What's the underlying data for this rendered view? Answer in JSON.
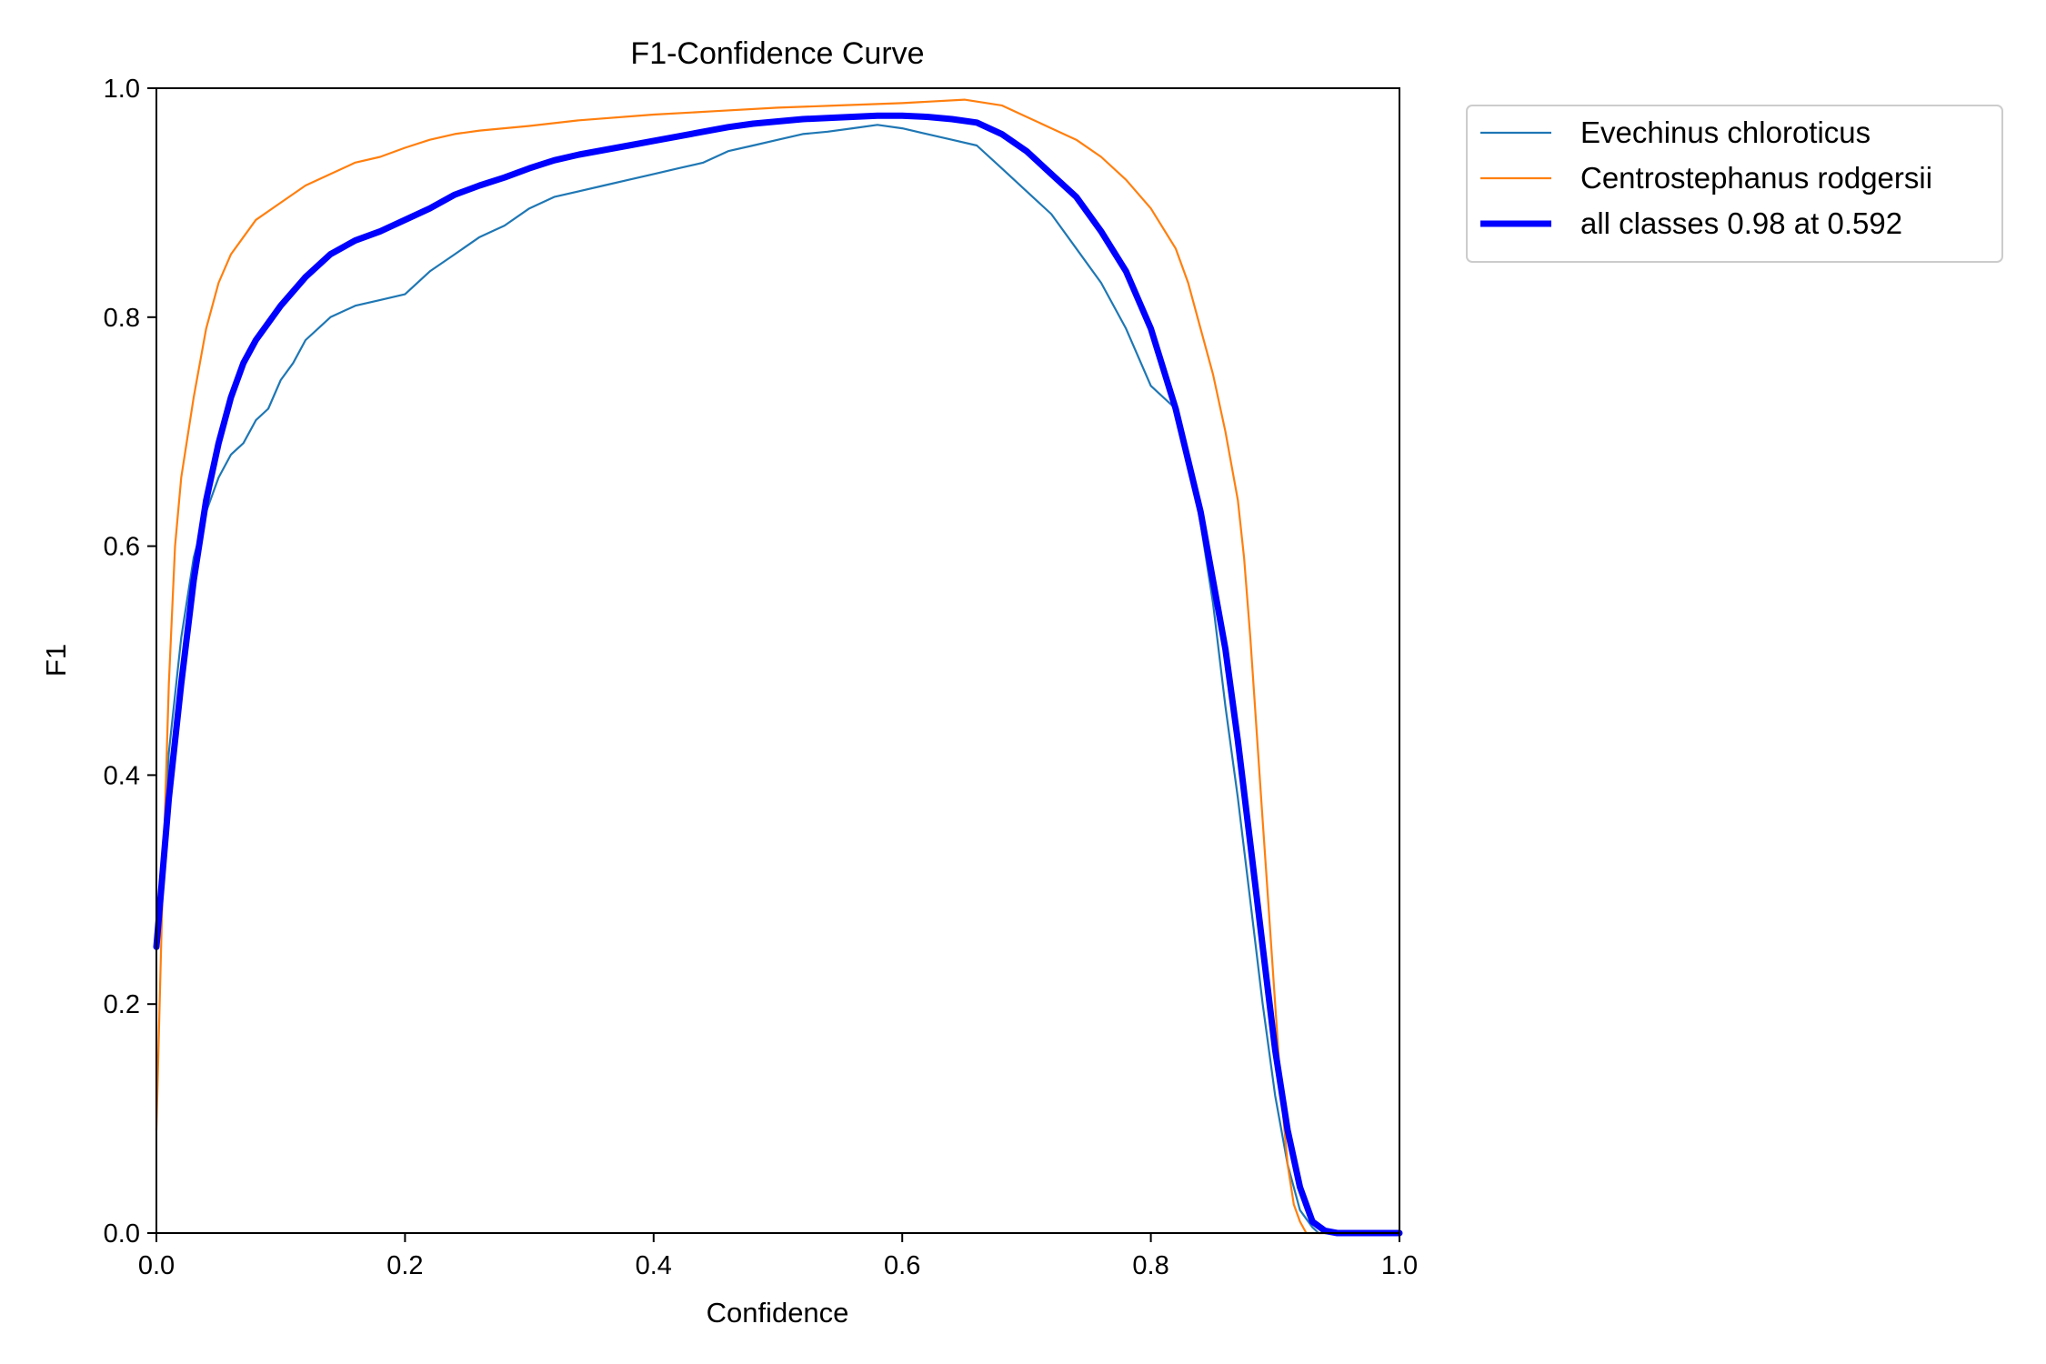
{
  "chart_data": {
    "type": "line",
    "title": "F1-Confidence Curve",
    "xlabel": "Confidence",
    "ylabel": "F1",
    "xlim": [
      0,
      1
    ],
    "ylim": [
      0,
      1
    ],
    "xticks": [
      "0.0",
      "0.2",
      "0.4",
      "0.6",
      "0.8",
      "1.0"
    ],
    "yticks": [
      "0.0",
      "0.2",
      "0.4",
      "0.6",
      "0.8",
      "1.0"
    ],
    "grid": false,
    "legend_position": "outside-top-right",
    "series": [
      {
        "name": "Evechinus chloroticus",
        "color": "#1f77b4",
        "width": "thin",
        "x": [
          0.0,
          0.005,
          0.01,
          0.02,
          0.03,
          0.04,
          0.05,
          0.06,
          0.07,
          0.08,
          0.09,
          0.1,
          0.11,
          0.12,
          0.13,
          0.14,
          0.16,
          0.18,
          0.2,
          0.22,
          0.24,
          0.26,
          0.28,
          0.3,
          0.32,
          0.34,
          0.36,
          0.38,
          0.4,
          0.42,
          0.44,
          0.46,
          0.48,
          0.5,
          0.52,
          0.54,
          0.56,
          0.58,
          0.6,
          0.62,
          0.64,
          0.66,
          0.68,
          0.7,
          0.72,
          0.74,
          0.76,
          0.78,
          0.8,
          0.82,
          0.83,
          0.84,
          0.85,
          0.86,
          0.87,
          0.88,
          0.89,
          0.9,
          0.91,
          0.92,
          0.93,
          0.935,
          0.94,
          1.0
        ],
        "y": [
          0.25,
          0.32,
          0.42,
          0.52,
          0.59,
          0.63,
          0.66,
          0.68,
          0.69,
          0.71,
          0.72,
          0.745,
          0.76,
          0.78,
          0.79,
          0.8,
          0.81,
          0.815,
          0.82,
          0.84,
          0.855,
          0.87,
          0.88,
          0.895,
          0.905,
          0.91,
          0.915,
          0.92,
          0.925,
          0.93,
          0.935,
          0.945,
          0.95,
          0.955,
          0.96,
          0.962,
          0.965,
          0.968,
          0.965,
          0.96,
          0.955,
          0.95,
          0.93,
          0.91,
          0.89,
          0.86,
          0.83,
          0.79,
          0.74,
          0.72,
          0.68,
          0.62,
          0.55,
          0.46,
          0.38,
          0.29,
          0.2,
          0.12,
          0.06,
          0.02,
          0.005,
          0.0,
          0.0,
          0.0
        ]
      },
      {
        "name": "Centrostephanus rodgersii",
        "color": "#ff7f0e",
        "width": "thin",
        "x": [
          0.0,
          0.005,
          0.01,
          0.015,
          0.02,
          0.03,
          0.04,
          0.05,
          0.06,
          0.07,
          0.08,
          0.1,
          0.12,
          0.14,
          0.16,
          0.18,
          0.2,
          0.22,
          0.24,
          0.26,
          0.3,
          0.34,
          0.4,
          0.45,
          0.5,
          0.55,
          0.6,
          0.65,
          0.68,
          0.7,
          0.72,
          0.74,
          0.76,
          0.78,
          0.8,
          0.82,
          0.83,
          0.84,
          0.85,
          0.86,
          0.87,
          0.875,
          0.88,
          0.885,
          0.89,
          0.895,
          0.9,
          0.905,
          0.91,
          0.915,
          0.92,
          0.925,
          1.0
        ],
        "y": [
          0.09,
          0.3,
          0.48,
          0.6,
          0.66,
          0.73,
          0.79,
          0.83,
          0.855,
          0.87,
          0.885,
          0.9,
          0.915,
          0.925,
          0.935,
          0.94,
          0.948,
          0.955,
          0.96,
          0.963,
          0.967,
          0.972,
          0.977,
          0.98,
          0.983,
          0.985,
          0.987,
          0.99,
          0.985,
          0.975,
          0.965,
          0.955,
          0.94,
          0.92,
          0.895,
          0.86,
          0.83,
          0.79,
          0.75,
          0.7,
          0.64,
          0.59,
          0.52,
          0.44,
          0.36,
          0.28,
          0.2,
          0.12,
          0.06,
          0.025,
          0.01,
          0.0,
          0.0
        ]
      },
      {
        "name": "all classes 0.98 at 0.592",
        "color": "#0000ff",
        "width": "thick",
        "x": [
          0.0,
          0.01,
          0.02,
          0.03,
          0.04,
          0.05,
          0.06,
          0.07,
          0.08,
          0.1,
          0.12,
          0.14,
          0.16,
          0.18,
          0.2,
          0.22,
          0.24,
          0.26,
          0.28,
          0.3,
          0.32,
          0.34,
          0.36,
          0.38,
          0.4,
          0.42,
          0.44,
          0.46,
          0.48,
          0.5,
          0.52,
          0.54,
          0.56,
          0.58,
          0.6,
          0.62,
          0.64,
          0.66,
          0.68,
          0.7,
          0.72,
          0.74,
          0.76,
          0.78,
          0.8,
          0.82,
          0.84,
          0.86,
          0.87,
          0.88,
          0.89,
          0.9,
          0.91,
          0.92,
          0.93,
          0.94,
          0.95,
          1.0
        ],
        "y": [
          0.25,
          0.38,
          0.48,
          0.57,
          0.64,
          0.69,
          0.73,
          0.76,
          0.78,
          0.81,
          0.835,
          0.855,
          0.867,
          0.875,
          0.885,
          0.895,
          0.907,
          0.915,
          0.922,
          0.93,
          0.937,
          0.942,
          0.946,
          0.95,
          0.954,
          0.958,
          0.962,
          0.966,
          0.969,
          0.971,
          0.973,
          0.974,
          0.975,
          0.976,
          0.976,
          0.975,
          0.973,
          0.97,
          0.96,
          0.945,
          0.925,
          0.905,
          0.875,
          0.84,
          0.79,
          0.72,
          0.63,
          0.51,
          0.43,
          0.34,
          0.25,
          0.16,
          0.09,
          0.04,
          0.01,
          0.002,
          0.0,
          0.0
        ]
      }
    ]
  }
}
